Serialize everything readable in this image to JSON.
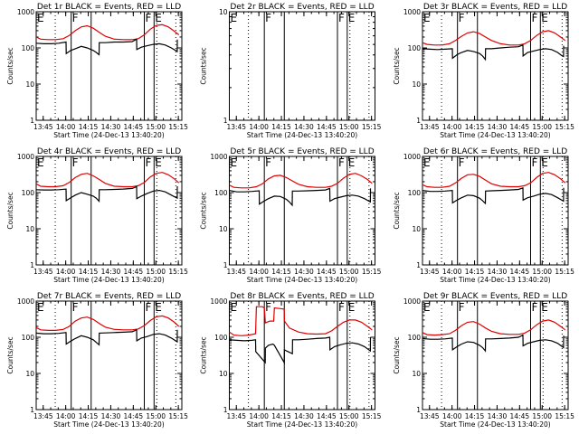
{
  "layout": {
    "rows": 3,
    "cols": 3
  },
  "colors": {
    "events": "#000000",
    "lld": "#e00000",
    "frame": "#000000",
    "background": "#ffffff"
  },
  "common": {
    "xlabel": "Start Time (24-Dec-13 13:40:20)",
    "ylabel": "Counts/sec",
    "x_ticks": [
      "13:45",
      "14:00",
      "14:15",
      "14:30",
      "14:45",
      "15:00",
      "15:15"
    ],
    "x_tick_minutes": [
      4.67,
      19.67,
      34.67,
      49.67,
      64.67,
      79.67,
      94.67
    ],
    "x_range_minutes": [
      0,
      97
    ],
    "y_ticks_log": [
      "1",
      "10",
      "100",
      "1000"
    ],
    "ylim": [
      1,
      1000
    ],
    "markers": [
      {
        "label": "E",
        "minute": 0,
        "style": "solid"
      },
      {
        "label": "",
        "minute": 12.7,
        "style": "dotted"
      },
      {
        "label": "F",
        "minute": 23.3,
        "style": "solid"
      },
      {
        "label": "",
        "minute": 36.6,
        "style": "solid"
      },
      {
        "label": "F",
        "minute": 72,
        "style": "solid"
      },
      {
        "label": "E",
        "minute": 78.5,
        "style": "solid"
      },
      {
        "label": "",
        "minute": 80.3,
        "style": "dotted"
      },
      {
        "label": "",
        "minute": 93,
        "style": "dotted"
      }
    ]
  },
  "chart_data": [
    {
      "type": "line",
      "title": "Det 1r BLACK = Events, RED = LLD",
      "ylim": [
        1,
        1000
      ],
      "yscale": "log",
      "series": [
        {
          "name": "LLD",
          "color": "#e00000",
          "x": [
            0,
            3,
            8,
            13,
            18,
            22,
            26,
            30,
            34,
            38,
            42,
            46,
            52,
            58,
            64,
            68,
            72,
            76,
            80,
            84,
            88,
            92,
            95
          ],
          "y": [
            200,
            175,
            170,
            170,
            180,
            220,
            300,
            380,
            410,
            350,
            270,
            210,
            175,
            170,
            170,
            180,
            230,
            330,
            420,
            440,
            380,
            290,
            230
          ]
        },
        {
          "name": "Events",
          "color": "#000000",
          "x": [
            0,
            5,
            10,
            15,
            19.9,
            20,
            23,
            26,
            30,
            34,
            38,
            40,
            41.9,
            42,
            46,
            52,
            58,
            64,
            66.9,
            67,
            70,
            74,
            78,
            82,
            86,
            90,
            93.9,
            94
          ],
          "y": [
            135,
            130,
            130,
            135,
            145,
            70,
            85,
            95,
            110,
            100,
            85,
            75,
            65,
            140,
            140,
            145,
            145,
            150,
            175,
            90,
            105,
            115,
            125,
            130,
            120,
            100,
            80,
            170
          ]
        }
      ]
    },
    {
      "type": "line",
      "title": "Det 2r BLACK = Events, RED = LLD",
      "ylim": [
        1,
        10
      ],
      "yscale": "log",
      "y_ticks": [
        "1",
        "10"
      ],
      "series": [
        {
          "name": "LLD",
          "color": "#e00000",
          "x": [],
          "y": []
        },
        {
          "name": "Events",
          "color": "#000000",
          "x": [],
          "y": []
        }
      ]
    },
    {
      "type": "line",
      "title": "Det 3r BLACK = Events, RED = LLD",
      "ylim": [
        1,
        1000
      ],
      "yscale": "log",
      "series": [
        {
          "name": "LLD",
          "color": "#e00000",
          "x": [
            0,
            3,
            8,
            13,
            18,
            22,
            26,
            30,
            34,
            38,
            42,
            46,
            52,
            58,
            64,
            68,
            72,
            76,
            80,
            84,
            88,
            92,
            95
          ],
          "y": [
            140,
            125,
            120,
            120,
            130,
            160,
            210,
            260,
            280,
            250,
            200,
            160,
            130,
            120,
            120,
            130,
            160,
            220,
            280,
            300,
            260,
            200,
            160
          ]
        },
        {
          "name": "Events",
          "color": "#000000",
          "x": [
            0,
            5,
            10,
            15,
            19.9,
            20,
            23,
            26,
            30,
            34,
            38,
            40,
            41.9,
            42,
            46,
            52,
            58,
            64,
            66.9,
            67,
            70,
            74,
            78,
            82,
            86,
            90,
            93,
            93.9,
            94
          ],
          "y": [
            95,
            92,
            90,
            92,
            95,
            52,
            65,
            75,
            85,
            80,
            70,
            60,
            48,
            95,
            95,
            100,
            105,
            108,
            120,
            60,
            75,
            82,
            90,
            95,
            90,
            75,
            60,
            58,
            115
          ]
        }
      ]
    },
    {
      "type": "line",
      "title": "Det 4r BLACK = Events, RED = LLD",
      "ylim": [
        1,
        1000
      ],
      "yscale": "log",
      "series": [
        {
          "name": "LLD",
          "color": "#e00000",
          "x": [
            0,
            3,
            8,
            13,
            18,
            22,
            26,
            30,
            34,
            38,
            42,
            46,
            52,
            58,
            64,
            68,
            72,
            76,
            80,
            84,
            88,
            92,
            95
          ],
          "y": [
            175,
            150,
            145,
            145,
            155,
            190,
            260,
            320,
            340,
            290,
            230,
            180,
            150,
            145,
            145,
            155,
            190,
            270,
            340,
            360,
            310,
            240,
            185
          ]
        },
        {
          "name": "Events",
          "color": "#000000",
          "x": [
            0,
            5,
            10,
            15,
            19.9,
            20,
            23,
            26,
            30,
            34,
            38,
            40,
            41.9,
            42,
            46,
            52,
            58,
            64,
            66.9,
            67,
            70,
            74,
            78,
            82,
            86,
            90,
            93.9,
            94
          ],
          "y": [
            120,
            118,
            118,
            120,
            125,
            60,
            72,
            85,
            100,
            90,
            80,
            70,
            58,
            120,
            120,
            122,
            125,
            130,
            145,
            68,
            80,
            95,
            110,
            115,
            105,
            85,
            70,
            150
          ]
        }
      ]
    },
    {
      "type": "line",
      "title": "Det 5r BLACK = Events, RED = LLD",
      "ylim": [
        1,
        1000
      ],
      "yscale": "log",
      "series": [
        {
          "name": "LLD",
          "color": "#e00000",
          "x": [
            0,
            3,
            8,
            13,
            18,
            22,
            26,
            30,
            34,
            38,
            42,
            46,
            52,
            58,
            64,
            68,
            72,
            76,
            80,
            84,
            88,
            92,
            95
          ],
          "y": [
            160,
            140,
            135,
            135,
            145,
            175,
            240,
            290,
            300,
            260,
            210,
            170,
            145,
            140,
            140,
            150,
            180,
            250,
            320,
            340,
            290,
            230,
            180
          ]
        },
        {
          "name": "Events",
          "color": "#000000",
          "x": [
            0,
            5,
            10,
            15,
            19.9,
            20,
            23,
            26,
            30,
            34,
            38,
            40,
            41.9,
            42,
            46,
            52,
            58,
            64,
            66.9,
            67,
            70,
            74,
            78,
            82,
            86,
            90,
            93.9,
            94
          ],
          "y": [
            115,
            105,
            105,
            108,
            112,
            48,
            58,
            68,
            80,
            78,
            65,
            55,
            45,
            110,
            110,
            112,
            115,
            118,
            130,
            58,
            68,
            75,
            82,
            85,
            80,
            68,
            55,
            130
          ]
        }
      ]
    },
    {
      "type": "line",
      "title": "Det 6r BLACK = Events, RED = LLD",
      "ylim": [
        1,
        1000
      ],
      "yscale": "log",
      "series": [
        {
          "name": "LLD",
          "color": "#e00000",
          "x": [
            0,
            3,
            8,
            13,
            18,
            22,
            26,
            30,
            34,
            38,
            42,
            46,
            52,
            58,
            64,
            68,
            72,
            76,
            80,
            84,
            88,
            92,
            95
          ],
          "y": [
            165,
            145,
            140,
            140,
            150,
            185,
            250,
            310,
            320,
            280,
            220,
            175,
            150,
            145,
            145,
            155,
            185,
            260,
            340,
            360,
            310,
            240,
            185
          ]
        },
        {
          "name": "Events",
          "color": "#000000",
          "x": [
            0,
            5,
            10,
            15,
            19.9,
            20,
            23,
            26,
            30,
            34,
            38,
            40,
            41.9,
            42,
            46,
            52,
            58,
            64,
            66.9,
            67,
            70,
            74,
            78,
            82,
            86,
            90,
            93.9,
            94
          ],
          "y": [
            115,
            108,
            108,
            110,
            115,
            52,
            62,
            72,
            85,
            82,
            70,
            60,
            50,
            110,
            112,
            115,
            118,
            122,
            135,
            62,
            72,
            80,
            90,
            95,
            88,
            72,
            58,
            135
          ]
        }
      ]
    },
    {
      "type": "line",
      "title": "Det 7r BLACK = Events, RED = LLD",
      "ylim": [
        1,
        1000
      ],
      "yscale": "log",
      "series": [
        {
          "name": "LLD",
          "color": "#e00000",
          "x": [
            0,
            3,
            8,
            13,
            18,
            22,
            26,
            30,
            34,
            38,
            42,
            46,
            52,
            58,
            64,
            68,
            72,
            76,
            80,
            84,
            88,
            92,
            95
          ],
          "y": [
            185,
            160,
            155,
            155,
            165,
            200,
            280,
            340,
            360,
            310,
            240,
            190,
            165,
            160,
            160,
            170,
            210,
            290,
            370,
            390,
            340,
            260,
            200
          ]
        },
        {
          "name": "Events",
          "color": "#000000",
          "x": [
            0,
            5,
            10,
            15,
            19.9,
            20,
            23,
            26,
            30,
            34,
            38,
            40,
            41.9,
            42,
            46,
            52,
            58,
            64,
            66.9,
            67,
            70,
            74,
            78,
            82,
            86,
            90,
            93.9,
            94
          ],
          "y": [
            130,
            125,
            125,
            128,
            135,
            65,
            78,
            92,
            110,
            100,
            85,
            72,
            62,
            130,
            132,
            135,
            138,
            142,
            160,
            80,
            95,
            105,
            120,
            125,
            115,
            95,
            75,
            160
          ]
        }
      ]
    },
    {
      "type": "line",
      "title": "Det 8r BLACK = Events, RED = LLD",
      "ylim": [
        1,
        1000
      ],
      "yscale": "log",
      "series": [
        {
          "name": "LLD",
          "color": "#e00000",
          "x": [
            0,
            3,
            8,
            13,
            17.5,
            18,
            22,
            23.3,
            24,
            27,
            29.5,
            30,
            34,
            36.5,
            36.7,
            40,
            46,
            52,
            58,
            64,
            68,
            72,
            76,
            80,
            84,
            88,
            92,
            95
          ],
          "y": [
            140,
            115,
            110,
            115,
            125,
            700,
            700,
            650,
            250,
            280,
            280,
            650,
            620,
            600,
            280,
            180,
            140,
            125,
            122,
            125,
            150,
            200,
            260,
            300,
            300,
            260,
            200,
            160
          ]
        },
        {
          "name": "Events",
          "color": "#000000",
          "x": [
            0,
            5,
            10,
            15,
            17.5,
            17.6,
            23.9,
            24,
            26,
            29,
            30,
            36.6,
            36.7,
            38,
            42,
            42.1,
            46,
            52,
            58,
            64,
            66.9,
            67,
            70,
            74,
            78,
            82,
            86,
            90,
            93.9,
            94
          ],
          "y": [
            85,
            82,
            80,
            82,
            85,
            40,
            20,
            50,
            60,
            65,
            60,
            20,
            45,
            42,
            35,
            85,
            85,
            88,
            92,
            95,
            100,
            45,
            55,
            62,
            68,
            70,
            65,
            55,
            42,
            100
          ]
        }
      ]
    },
    {
      "type": "line",
      "title": "Det 9r BLACK = Events, RED = LLD",
      "ylim": [
        1,
        1000
      ],
      "yscale": "log",
      "series": [
        {
          "name": "LLD",
          "color": "#e00000",
          "x": [
            0,
            3,
            8,
            13,
            18,
            22,
            26,
            30,
            34,
            38,
            42,
            46,
            52,
            58,
            64,
            68,
            72,
            76,
            80,
            84,
            88,
            92,
            95
          ],
          "y": [
            135,
            118,
            115,
            118,
            125,
            155,
            210,
            260,
            270,
            230,
            180,
            145,
            125,
            120,
            120,
            130,
            160,
            220,
            280,
            300,
            260,
            200,
            160
          ]
        },
        {
          "name": "Events",
          "color": "#000000",
          "x": [
            0,
            5,
            10,
            15,
            19.9,
            20,
            23,
            26,
            30,
            34,
            38,
            40,
            41.9,
            42,
            46,
            52,
            58,
            64,
            66.9,
            67,
            70,
            74,
            78,
            82,
            86,
            90,
            93.9,
            94
          ],
          "y": [
            92,
            88,
            88,
            90,
            95,
            45,
            55,
            65,
            75,
            72,
            60,
            52,
            42,
            90,
            90,
            92,
            95,
            100,
            115,
            58,
            68,
            75,
            82,
            85,
            80,
            68,
            52,
            110
          ]
        }
      ]
    }
  ]
}
